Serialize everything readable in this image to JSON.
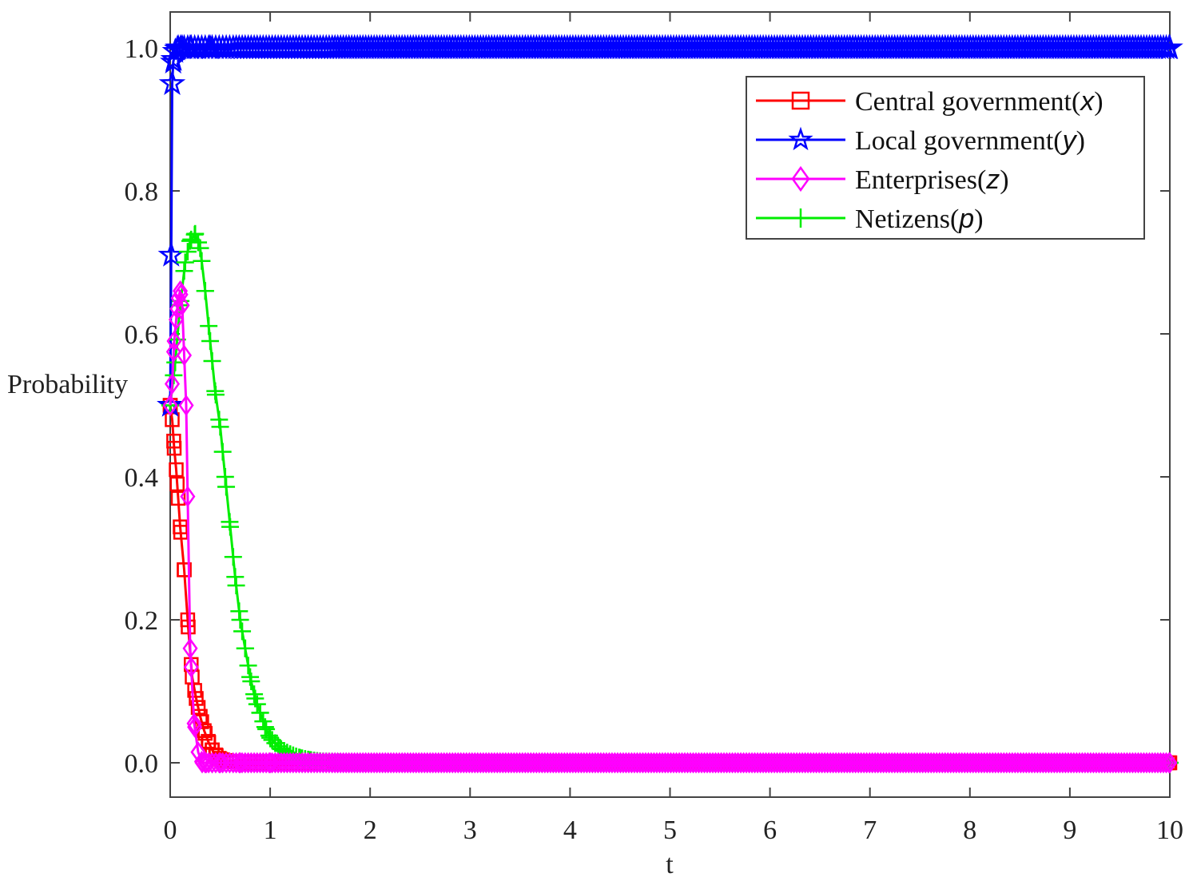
{
  "chart_data": {
    "type": "line",
    "title": "",
    "xlabel": "t",
    "ylabel": "Probability",
    "xlim": [
      0,
      10
    ],
    "ylim": [
      -0.1,
      1.05
    ],
    "xticks": [
      0,
      1,
      2,
      3,
      4,
      5,
      6,
      7,
      8,
      9,
      10
    ],
    "xtick_labels": [
      "0",
      "1",
      "2",
      "3",
      "4",
      "5",
      "6",
      "7",
      "8",
      "9",
      "10"
    ],
    "yticks": [
      0.0,
      0.2,
      0.4,
      0.6,
      0.8,
      1.0
    ],
    "ytick_labels": [
      "0.0",
      "0.2",
      "0.4",
      "0.6",
      "0.8",
      "1.0"
    ],
    "grid": false,
    "legend_position": "top-right",
    "series": [
      {
        "name": "Central government",
        "var": "x",
        "color": "#ff0000",
        "marker": "square",
        "x": [
          0.0,
          0.02,
          0.04,
          0.06,
          0.08,
          0.1,
          0.14,
          0.18,
          0.22,
          0.26,
          0.3,
          0.34,
          0.38,
          0.42,
          0.46,
          0.5,
          0.6,
          0.8,
          1.0,
          10.0
        ],
        "y": [
          0.5,
          0.48,
          0.44,
          0.41,
          0.37,
          0.33,
          0.27,
          0.19,
          0.12,
          0.09,
          0.065,
          0.045,
          0.03,
          0.018,
          0.01,
          0.005,
          0.002,
          0.0,
          0.0,
          0.0
        ]
      },
      {
        "name": "Local government",
        "var": "y",
        "color": "#0000ff",
        "marker": "star",
        "x": [
          0.0,
          0.01,
          0.02,
          0.03,
          0.05,
          0.08,
          0.12,
          0.2,
          0.4,
          10.0
        ],
        "y": [
          0.5,
          0.71,
          0.95,
          0.98,
          0.995,
          1.0,
          1.0,
          1.0,
          1.0,
          1.0
        ],
        "note": "markers densely along y = 1.0 to t = 10"
      },
      {
        "name": "Enterprises",
        "var": "z",
        "color": "#ff00ff",
        "marker": "diamond",
        "x": [
          0.0,
          0.02,
          0.04,
          0.06,
          0.08,
          0.1,
          0.12,
          0.16,
          0.2,
          0.24,
          0.28,
          0.32,
          0.36,
          0.42,
          0.5,
          0.7,
          1.0,
          10.0
        ],
        "y": [
          0.5,
          0.53,
          0.59,
          0.62,
          0.65,
          0.66,
          0.64,
          0.5,
          0.16,
          0.055,
          0.015,
          0.0,
          0.0,
          0.0,
          0.0,
          0.0,
          0.0,
          0.0
        ]
      },
      {
        "name": "Netizens",
        "var": "p",
        "color": "#00ee00",
        "marker": "plus",
        "x": [
          0.0,
          0.05,
          0.1,
          0.15,
          0.2,
          0.25,
          0.3,
          0.35,
          0.4,
          0.45,
          0.5,
          0.55,
          0.6,
          0.65,
          0.7,
          0.75,
          0.8,
          0.85,
          0.9,
          0.95,
          1.0,
          1.1,
          1.2,
          1.3,
          1.4,
          1.5,
          1.7,
          2.0,
          2.5,
          3.0,
          10.0
        ],
        "y": [
          0.5,
          0.56,
          0.64,
          0.7,
          0.73,
          0.74,
          0.72,
          0.66,
          0.59,
          0.52,
          0.47,
          0.4,
          0.33,
          0.26,
          0.2,
          0.16,
          0.12,
          0.09,
          0.07,
          0.05,
          0.035,
          0.02,
          0.012,
          0.007,
          0.004,
          0.002,
          0.001,
          0.0,
          0.0,
          0.0,
          0.0
        ]
      }
    ]
  }
}
